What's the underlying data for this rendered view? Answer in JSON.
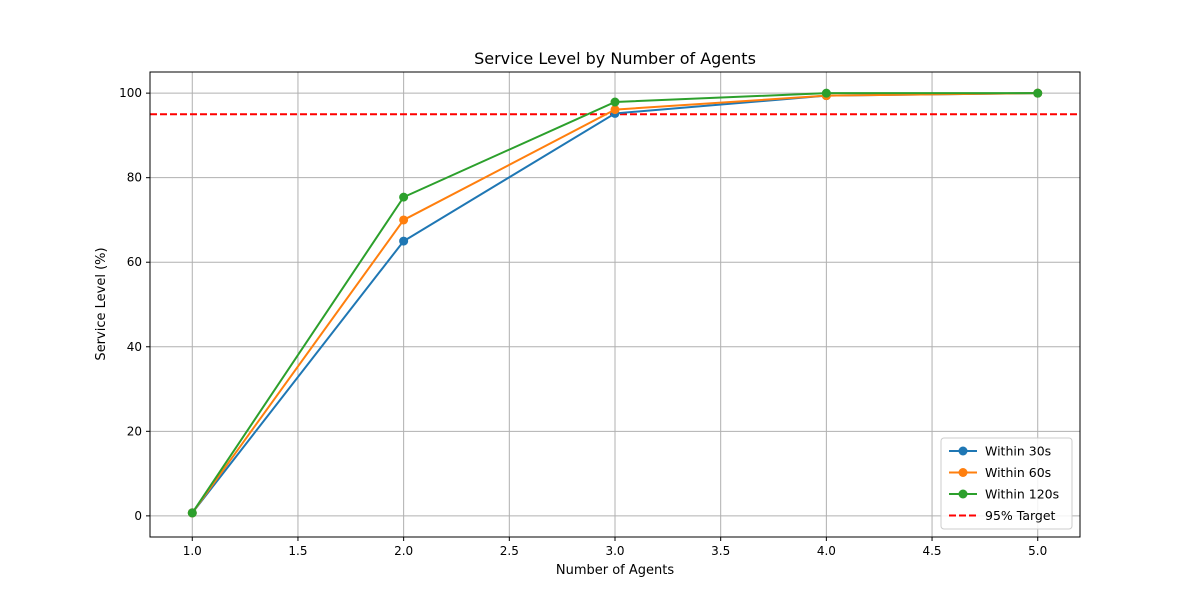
{
  "chart_data": {
    "type": "line",
    "title": "Service Level by Number of Agents",
    "xlabel": "Number of Agents",
    "ylabel": "Service Level (%)",
    "x": [
      1,
      2,
      3,
      4,
      5
    ],
    "xlim": [
      0.8,
      5.2
    ],
    "ylim": [
      -5,
      105
    ],
    "xticks": [
      "1.0",
      "1.5",
      "2.0",
      "2.5",
      "3.0",
      "3.5",
      "4.0",
      "4.5",
      "5.0"
    ],
    "yticks": [
      "0",
      "20",
      "40",
      "60",
      "80",
      "100"
    ],
    "grid": true,
    "legend_position": "lower-right",
    "series": [
      {
        "name": "Within 30s",
        "color": "#1f77b4",
        "marker": "circle",
        "values": [
          0.7,
          65.0,
          95.2,
          99.4,
          100.0
        ]
      },
      {
        "name": "Within 60s",
        "color": "#ff7f0e",
        "marker": "circle",
        "values": [
          0.7,
          70.0,
          96.1,
          99.4,
          100.0
        ]
      },
      {
        "name": "Within 120s",
        "color": "#2ca02c",
        "marker": "circle",
        "values": [
          0.7,
          75.4,
          97.9,
          100.0,
          100.0
        ]
      }
    ],
    "reference_lines": [
      {
        "name": "95% Target",
        "axis": "y",
        "value": 95,
        "color": "#ff0000",
        "style": "dashed"
      }
    ]
  }
}
